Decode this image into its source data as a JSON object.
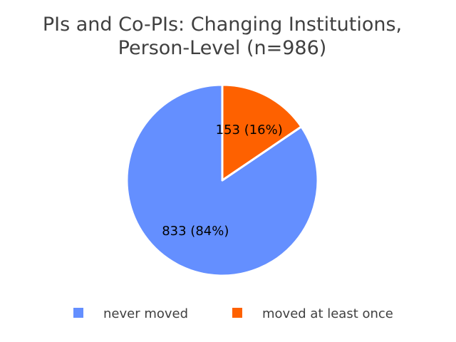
{
  "chart_data": {
    "type": "pie",
    "title_lines": [
      "PIs and Co-PIs: Changing Institutions,",
      "Person-Level (n=986)"
    ],
    "slices": [
      {
        "name": "never moved",
        "value": 833,
        "label": "833 (84%)",
        "color": "#648FFF"
      },
      {
        "name": "moved at least once",
        "value": 153,
        "label": "153 (16%)",
        "color": "#FE6100"
      }
    ],
    "start_angle": "top",
    "direction": "counterclockwise",
    "legend_position": "bottom"
  }
}
